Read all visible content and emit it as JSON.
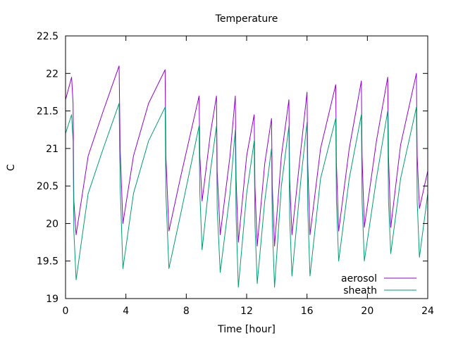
{
  "chart_data": {
    "type": "line",
    "title": "Temperature",
    "xlabel": "Time [hour]",
    "ylabel": "C",
    "xlim": [
      0,
      24
    ],
    "ylim": [
      19,
      22.5
    ],
    "xticks": [
      0,
      4,
      8,
      12,
      16,
      20,
      24
    ],
    "yticks": [
      19,
      19.5,
      20,
      20.5,
      21,
      21.5,
      22,
      22.5
    ],
    "ytick_labels": [
      "19",
      "19.5",
      "20",
      "20.5",
      "21",
      "21.5",
      "22",
      "22.5"
    ],
    "grid": false,
    "legend_position": "bottom-right",
    "series": [
      {
        "name": "aerosol",
        "color": "#9400d3",
        "x": [
          0.0,
          0.4,
          0.5,
          0.55,
          0.7,
          1.5,
          2.5,
          3.55,
          3.62,
          3.8,
          4.5,
          5.5,
          6.6,
          6.65,
          6.85,
          7.6,
          8.85,
          8.9,
          9.05,
          9.6,
          10.0,
          10.05,
          10.25,
          10.9,
          11.25,
          11.3,
          11.45,
          12.0,
          12.5,
          12.55,
          12.7,
          13.2,
          13.65,
          13.7,
          13.85,
          14.3,
          14.8,
          14.85,
          15.0,
          15.6,
          16.0,
          16.05,
          16.2,
          16.9,
          17.9,
          17.95,
          18.1,
          18.8,
          19.6,
          19.65,
          19.8,
          20.6,
          21.35,
          21.4,
          21.55,
          22.2,
          23.25,
          23.3,
          23.45,
          24.0
        ],
        "y": [
          21.65,
          21.95,
          21.6,
          20.3,
          19.85,
          20.9,
          21.5,
          22.1,
          21.0,
          20.0,
          20.9,
          21.6,
          22.05,
          20.9,
          19.9,
          20.6,
          21.7,
          20.9,
          20.3,
          21.2,
          21.7,
          20.7,
          19.85,
          20.9,
          21.7,
          20.6,
          19.75,
          20.9,
          21.45,
          20.5,
          19.7,
          20.8,
          21.4,
          20.5,
          19.7,
          20.9,
          21.65,
          20.6,
          19.85,
          21.0,
          21.75,
          20.8,
          19.85,
          21.0,
          21.85,
          20.8,
          19.9,
          21.0,
          21.9,
          20.9,
          19.95,
          21.1,
          21.95,
          20.9,
          19.95,
          21.05,
          22.0,
          20.9,
          20.2,
          20.7
        ]
      },
      {
        "name": "sheath",
        "color": "#009e73",
        "x": [
          0.0,
          0.4,
          0.5,
          0.55,
          0.7,
          1.5,
          2.5,
          3.55,
          3.62,
          3.8,
          4.5,
          5.5,
          6.6,
          6.65,
          6.85,
          7.6,
          8.85,
          8.9,
          9.05,
          9.6,
          10.0,
          10.05,
          10.25,
          10.9,
          11.25,
          11.3,
          11.45,
          12.0,
          12.5,
          12.55,
          12.7,
          13.2,
          13.65,
          13.7,
          13.85,
          14.3,
          14.8,
          14.85,
          15.0,
          15.6,
          16.0,
          16.05,
          16.2,
          16.9,
          17.9,
          17.95,
          18.1,
          18.8,
          19.6,
          19.65,
          19.8,
          20.6,
          21.35,
          21.4,
          21.55,
          22.2,
          23.25,
          23.3,
          23.45,
          24.0
        ],
        "y": [
          21.2,
          21.45,
          21.1,
          19.9,
          19.25,
          20.4,
          21.0,
          21.6,
          20.5,
          19.4,
          20.4,
          21.1,
          21.55,
          20.4,
          19.4,
          20.1,
          21.3,
          20.4,
          19.65,
          20.7,
          21.3,
          20.2,
          19.35,
          20.4,
          21.25,
          20.1,
          19.15,
          20.4,
          21.1,
          20.0,
          19.2,
          20.3,
          21.0,
          20.0,
          19.15,
          20.5,
          21.3,
          20.1,
          19.3,
          20.6,
          21.35,
          20.2,
          19.3,
          20.6,
          21.4,
          20.3,
          19.5,
          20.6,
          21.45,
          20.3,
          19.5,
          20.6,
          21.5,
          20.3,
          19.6,
          20.6,
          21.55,
          20.3,
          19.55,
          20.4
        ]
      }
    ]
  }
}
